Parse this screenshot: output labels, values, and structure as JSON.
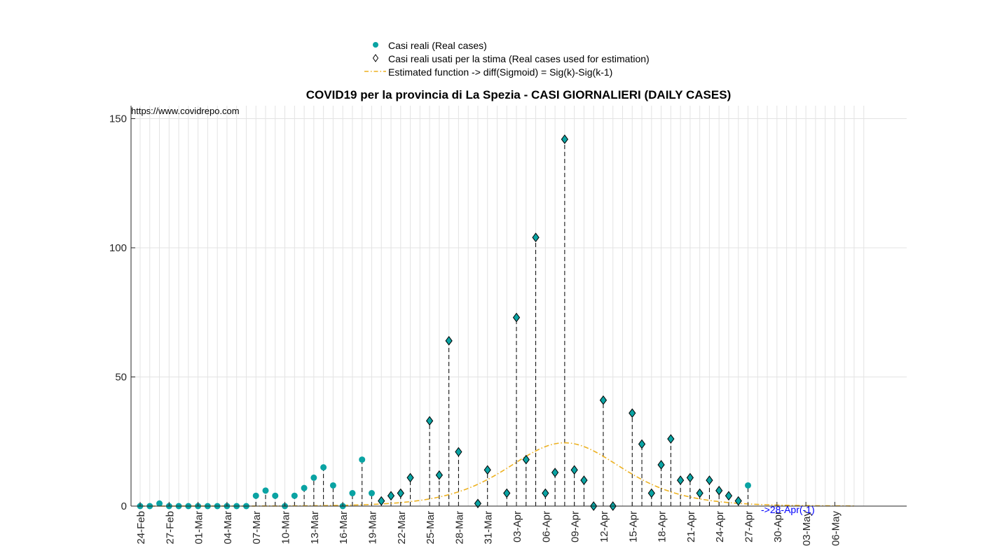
{
  "chart_data": {
    "type": "scatter",
    "title": "COVID19 per la provincia di La Spezia - CASI GIORNALIERI (DAILY CASES)",
    "xlabel": "",
    "ylabel": "",
    "ylim": [
      0,
      155
    ],
    "yticks": [
      0,
      50,
      100,
      150
    ],
    "grid": true,
    "legend_position": "top",
    "x": [
      "24-Feb",
      "25-Feb",
      "26-Feb",
      "27-Feb",
      "28-Feb",
      "29-Feb",
      "01-Mar",
      "02-Mar",
      "03-Mar",
      "04-Mar",
      "05-Mar",
      "06-Mar",
      "07-Mar",
      "08-Mar",
      "09-Mar",
      "10-Mar",
      "11-Mar",
      "12-Mar",
      "13-Mar",
      "14-Mar",
      "15-Mar",
      "16-Mar",
      "17-Mar",
      "18-Mar",
      "19-Mar",
      "20-Mar",
      "21-Mar",
      "22-Mar",
      "23-Mar",
      "24-Mar",
      "25-Mar",
      "26-Mar",
      "27-Mar",
      "28-Mar",
      "29-Mar",
      "30-Mar",
      "31-Mar",
      "01-Apr",
      "02-Apr",
      "03-Apr",
      "04-Apr",
      "05-Apr",
      "06-Apr",
      "07-Apr",
      "08-Apr",
      "09-Apr",
      "10-Apr",
      "11-Apr",
      "12-Apr",
      "13-Apr",
      "14-Apr",
      "15-Apr",
      "16-Apr",
      "17-Apr",
      "18-Apr",
      "19-Apr",
      "20-Apr",
      "21-Apr",
      "22-Apr",
      "23-Apr",
      "24-Apr",
      "25-Apr",
      "26-Apr",
      "27-Apr",
      "28-Apr",
      "29-Apr",
      "30-Apr",
      "01-May",
      "02-May",
      "03-May",
      "04-May",
      "05-May",
      "06-May",
      "07-May",
      "08-May",
      "09-May"
    ],
    "xtick_labels": [
      "24-Feb",
      "27-Feb",
      "01-Mar",
      "04-Mar",
      "07-Mar",
      "10-Mar",
      "13-Mar",
      "16-Mar",
      "19-Mar",
      "22-Mar",
      "25-Mar",
      "28-Mar",
      "31-Mar",
      "03-Apr",
      "06-Apr",
      "09-Apr",
      "12-Apr",
      "15-Apr",
      "18-Apr",
      "21-Apr",
      "24-Apr",
      "27-Apr",
      "30-Apr",
      "03-May",
      "06-May"
    ],
    "series": [
      {
        "name": "Casi reali (Real cases)",
        "marker": "circle",
        "color": "#0aa3a3",
        "values": [
          0,
          0,
          1,
          0,
          0,
          0,
          0,
          0,
          0,
          0,
          0,
          0,
          4,
          6,
          4,
          0,
          4,
          7,
          11,
          15,
          8,
          0,
          5,
          18,
          5,
          2,
          4,
          5,
          11,
          null,
          33,
          12,
          64,
          21,
          null,
          1,
          14,
          null,
          5,
          73,
          18,
          104,
          5,
          13,
          142,
          14,
          10,
          0,
          41,
          0,
          null,
          36,
          24,
          5,
          16,
          26,
          10,
          11,
          5,
          10,
          6,
          4,
          2,
          8
        ]
      },
      {
        "name": "Casi reali usati per la stima (Real cases used for estimation)",
        "marker": "diamond",
        "color": "#0aa3a3",
        "values": [
          null,
          null,
          null,
          null,
          null,
          null,
          null,
          null,
          null,
          null,
          null,
          null,
          null,
          null,
          null,
          null,
          null,
          null,
          null,
          null,
          null,
          null,
          null,
          null,
          null,
          2,
          4,
          5,
          11,
          null,
          33,
          12,
          64,
          21,
          null,
          1,
          14,
          null,
          5,
          73,
          18,
          104,
          5,
          13,
          142,
          14,
          10,
          0,
          41,
          0,
          null,
          36,
          24,
          5,
          16,
          26,
          10,
          11,
          5,
          10,
          6,
          4,
          2,
          null
        ]
      },
      {
        "name": "Estimated function -> diff(Sigmoid) = Sig(k)-Sig(k-1)",
        "line_style": "dash-dot",
        "color": "#edb120",
        "peak_index": 44,
        "peak_value": 24.5,
        "spread": 14,
        "x_end_index": 74
      }
    ],
    "annotations": {
      "source": "https://www.covidrepo.com",
      "projection": "->28-Apr(-1)"
    }
  }
}
